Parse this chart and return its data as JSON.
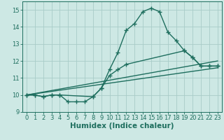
{
  "bg_color": "#cde8e4",
  "grid_color": "#a8ccc8",
  "line_color": "#1e6e5e",
  "line_width": 1.0,
  "marker": "+",
  "marker_size": 4,
  "marker_lw": 1.0,
  "xlabel": "Humidex (Indice chaleur)",
  "xlabel_fontsize": 7.5,
  "tick_fontsize": 6.0,
  "xlim": [
    -0.5,
    23.5
  ],
  "ylim": [
    9.0,
    15.5
  ],
  "yticks": [
    9,
    10,
    11,
    12,
    13,
    14,
    15
  ],
  "xticks": [
    0,
    1,
    2,
    3,
    4,
    5,
    6,
    7,
    8,
    9,
    10,
    11,
    12,
    13,
    14,
    15,
    16,
    17,
    18,
    19,
    20,
    21,
    22,
    23
  ],
  "series1_x": [
    0,
    1,
    2,
    3,
    4,
    5,
    6,
    7,
    8,
    9,
    10,
    11,
    12,
    13,
    14,
    15,
    16,
    17,
    18,
    19,
    20,
    21,
    22,
    23
  ],
  "series1_y": [
    10.0,
    10.0,
    9.9,
    10.0,
    10.0,
    9.6,
    9.6,
    9.6,
    9.9,
    10.4,
    11.5,
    12.5,
    13.8,
    14.2,
    14.9,
    15.1,
    14.9,
    13.7,
    13.2,
    12.6,
    12.2,
    11.7,
    11.7,
    11.7
  ],
  "series2_x": [
    0,
    1,
    2,
    3,
    4,
    8,
    9,
    10,
    11,
    12,
    19,
    20,
    21,
    22,
    23
  ],
  "series2_y": [
    10.0,
    10.0,
    9.9,
    10.0,
    10.0,
    9.9,
    10.4,
    11.15,
    11.5,
    11.8,
    12.6,
    12.2,
    11.7,
    11.7,
    11.7
  ],
  "series3_x": [
    0,
    23
  ],
  "series3_y": [
    10.0,
    12.0
  ],
  "series4_x": [
    0,
    23
  ],
  "series4_y": [
    10.0,
    11.6
  ]
}
